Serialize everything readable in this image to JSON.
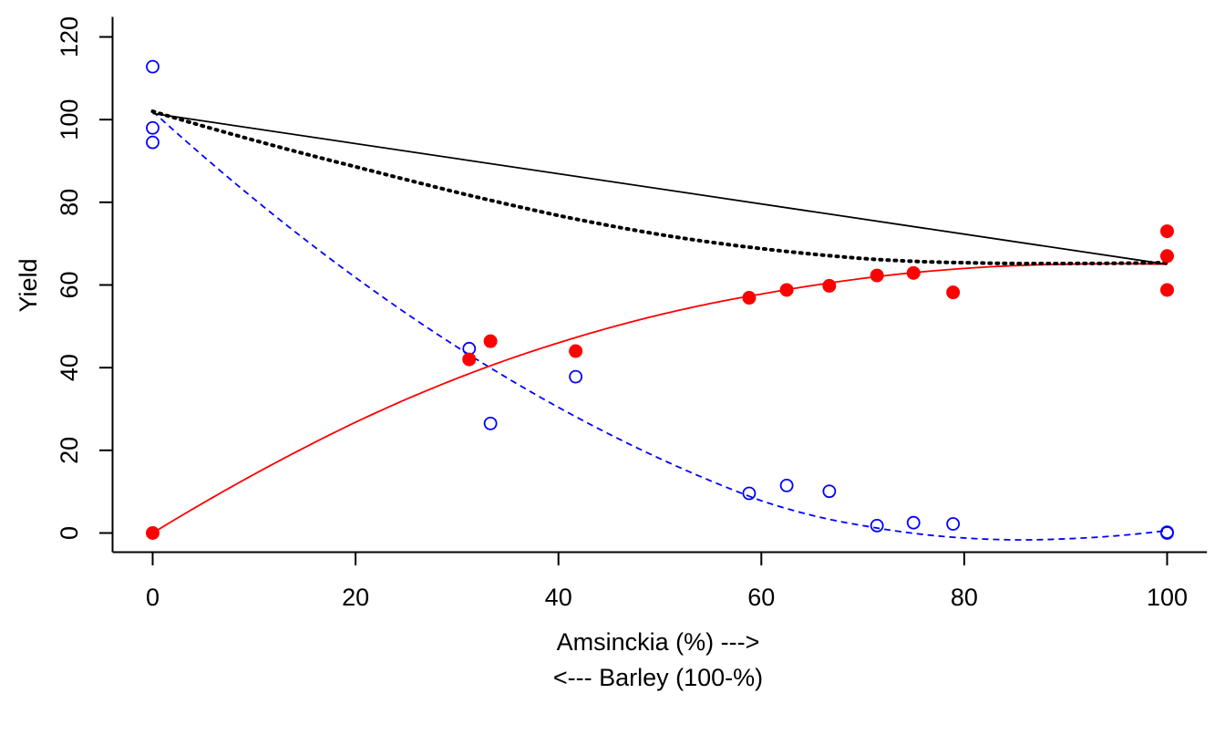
{
  "chart_data": {
    "type": "scatter",
    "title": "",
    "xlabel": "Amsinckia (%) --->",
    "xlabel2": "<--- Barley (100-%)",
    "ylabel": "Yield",
    "xlim": [
      -4,
      104
    ],
    "ylim": [
      -5,
      125
    ],
    "xticks": [
      0,
      20,
      40,
      60,
      80,
      100
    ],
    "yticks": [
      0,
      20,
      40,
      60,
      80,
      100,
      120
    ],
    "grid": false,
    "series": [
      {
        "kind": "points",
        "marker": "open-circle",
        "color": "#0000ff",
        "x": [
          0,
          0,
          0,
          31.2,
          33.3,
          41.7,
          58.8,
          62.5,
          66.7,
          71.4,
          75.0,
          78.9,
          100,
          100
        ],
        "y": [
          112.8,
          98.0,
          94.5,
          44.6,
          26.5,
          37.8,
          9.6,
          11.5,
          10.1,
          1.8,
          2.5,
          2.2,
          0.2,
          0.0
        ]
      },
      {
        "kind": "points",
        "marker": "filled-circle",
        "color": "#ff0000",
        "x": [
          0,
          31.2,
          33.3,
          41.7,
          58.8,
          62.5,
          66.7,
          71.4,
          75.0,
          78.9,
          100,
          100,
          100
        ],
        "y": [
          0.0,
          42.0,
          46.4,
          44.0,
          56.9,
          58.8,
          59.8,
          62.3,
          62.9,
          58.2,
          73.0,
          67.0,
          58.8
        ]
      },
      {
        "kind": "line",
        "style": "dashed",
        "color": "#0000ff",
        "x": [
          0,
          10,
          20,
          30,
          40,
          50,
          60,
          70,
          80,
          90,
          100
        ],
        "y": [
          102.0,
          80.8,
          61.8,
          45.0,
          30.4,
          18.0,
          7.8,
          1.8,
          -1.2,
          -1.4,
          0.6
        ]
      },
      {
        "kind": "line",
        "style": "solid",
        "color": "#ff0000",
        "x": [
          0,
          10,
          20,
          30,
          40,
          50,
          60,
          70,
          80,
          90,
          100
        ],
        "y": [
          0.0,
          14.2,
          26.8,
          37.4,
          46.0,
          52.8,
          57.8,
          61.6,
          64.0,
          65.0,
          65.0
        ]
      },
      {
        "kind": "line",
        "style": "dotted",
        "color": "#000000",
        "x": [
          0,
          10,
          20,
          30,
          40,
          50,
          60,
          70,
          80,
          90,
          100
        ],
        "y": [
          102.0,
          95.0,
          88.6,
          82.4,
          76.8,
          72.2,
          68.8,
          66.4,
          65.4,
          65.2,
          65.4
        ]
      },
      {
        "kind": "line",
        "style": "solid",
        "color": "#000000",
        "x": [
          0,
          100
        ],
        "y": [
          101.5,
          65.0
        ]
      }
    ]
  }
}
